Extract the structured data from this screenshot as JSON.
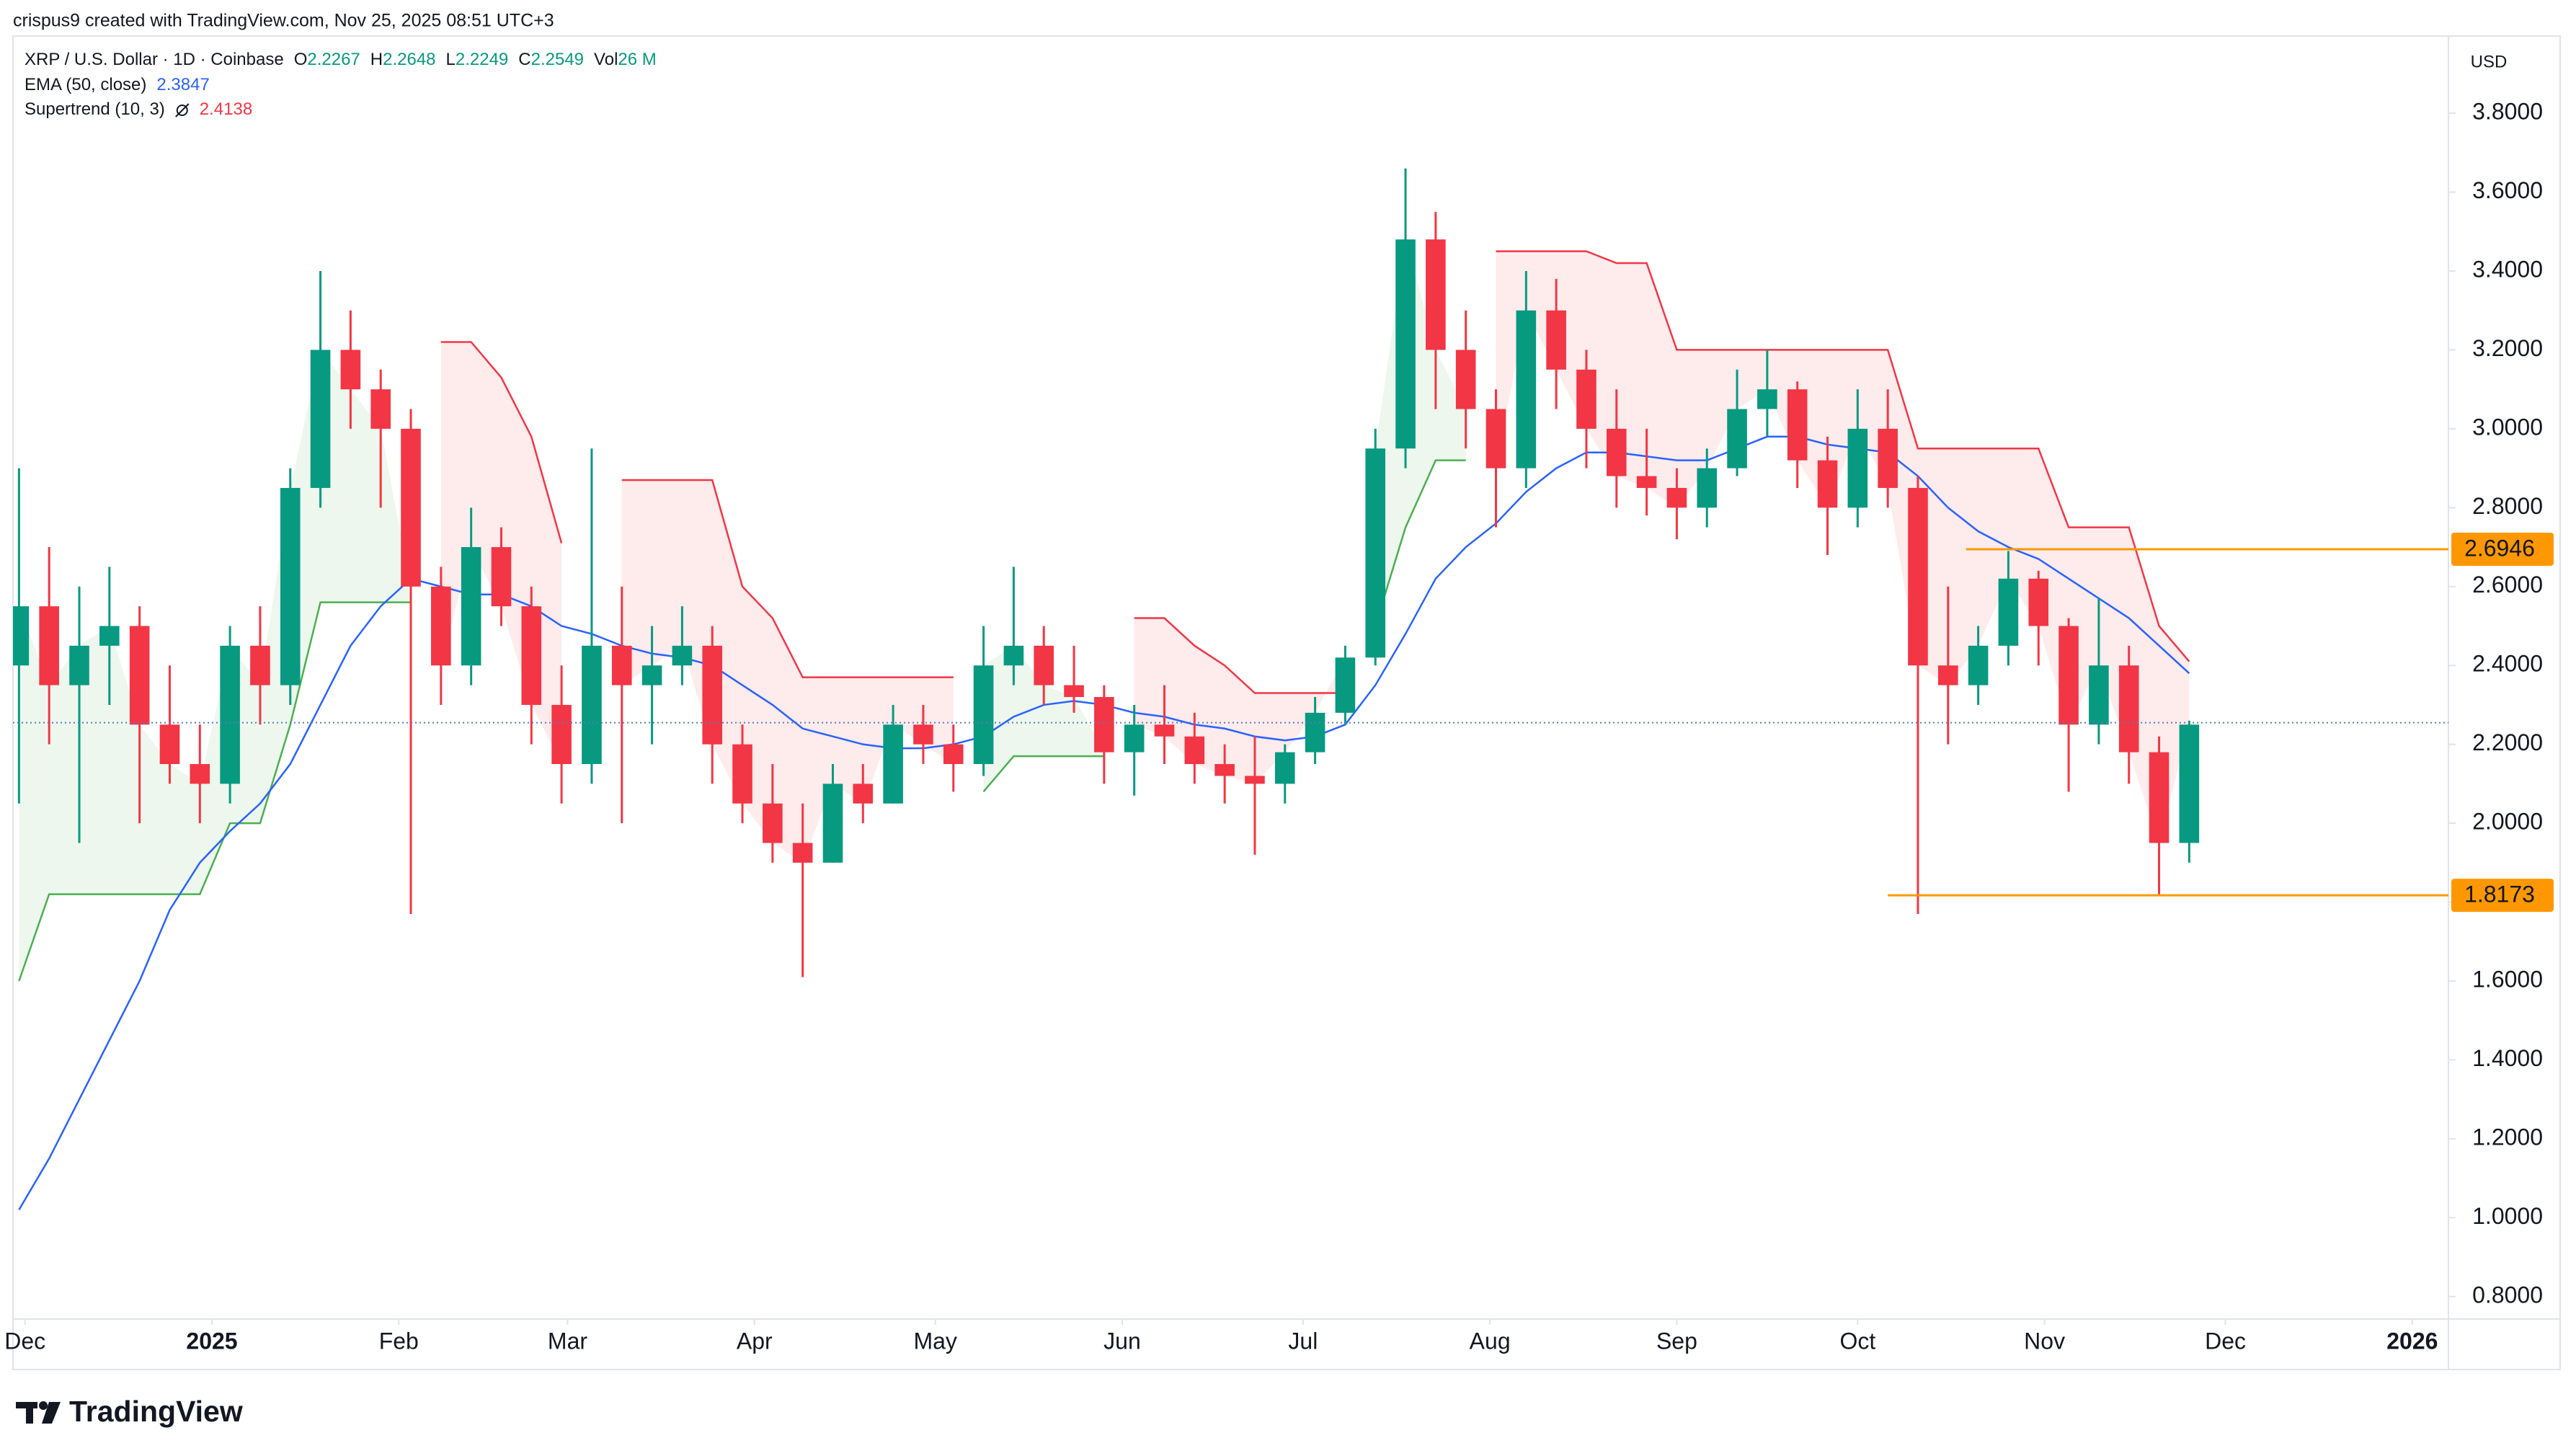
{
  "header": {
    "text": "crispus9 created with TradingView.com, Nov 25, 2025 08:51 UTC+3"
  },
  "chart_data": {
    "type": "candlestick",
    "symbol": "XRP / U.S. Dollar · 1D · Coinbase",
    "legend": [
      {
        "label": "O",
        "value": 2.2267
      },
      {
        "label": "H",
        "value": 2.2648
      },
      {
        "label": "L",
        "value": 2.2249
      },
      {
        "label": "C",
        "value": 2.2549
      },
      {
        "label": "Vol",
        "value": "26 M"
      }
    ],
    "currency": "USD",
    "colors": {
      "up": "#089981",
      "down": "#f23645"
    },
    "x": [
      "2024-11-30",
      "2024-12-05",
      "2024-12-10",
      "2024-12-15",
      "2024-12-20",
      "2024-12-25",
      "2024-12-30",
      "2025-01-04",
      "2025-01-09",
      "2025-01-14",
      "2025-01-19",
      "2025-01-24",
      "2025-01-29",
      "2025-02-03",
      "2025-02-08",
      "2025-02-13",
      "2025-02-18",
      "2025-02-23",
      "2025-02-28",
      "2025-03-05",
      "2025-03-10",
      "2025-03-15",
      "2025-03-20",
      "2025-03-25",
      "2025-03-30",
      "2025-04-04",
      "2025-04-09",
      "2025-04-14",
      "2025-04-19",
      "2025-04-24",
      "2025-04-29",
      "2025-05-04",
      "2025-05-09",
      "2025-05-14",
      "2025-05-19",
      "2025-05-24",
      "2025-05-29",
      "2025-06-03",
      "2025-06-08",
      "2025-06-13",
      "2025-06-18",
      "2025-06-23",
      "2025-06-28",
      "2025-07-03",
      "2025-07-08",
      "2025-07-13",
      "2025-07-18",
      "2025-07-23",
      "2025-07-28",
      "2025-08-02",
      "2025-08-07",
      "2025-08-12",
      "2025-08-17",
      "2025-08-22",
      "2025-08-27",
      "2025-09-01",
      "2025-09-06",
      "2025-09-11",
      "2025-09-16",
      "2025-09-21",
      "2025-09-26",
      "2025-10-01",
      "2025-10-06",
      "2025-10-11",
      "2025-10-16",
      "2025-10-21",
      "2025-10-26",
      "2025-10-31",
      "2025-11-05",
      "2025-11-10",
      "2025-11-15",
      "2025-11-20",
      "2025-11-25"
    ],
    "open": [
      2.4,
      2.55,
      2.35,
      2.45,
      2.5,
      2.25,
      2.15,
      2.1,
      2.45,
      2.35,
      2.85,
      3.2,
      3.1,
      3.0,
      2.6,
      2.4,
      2.7,
      2.55,
      2.3,
      2.15,
      2.45,
      2.35,
      2.4,
      2.45,
      2.2,
      2.05,
      1.95,
      1.9,
      2.1,
      2.05,
      2.25,
      2.2,
      2.15,
      2.4,
      2.45,
      2.35,
      2.32,
      2.18,
      2.25,
      2.22,
      2.15,
      2.12,
      2.1,
      2.18,
      2.28,
      2.42,
      2.95,
      3.48,
      3.2,
      3.05,
      2.9,
      3.3,
      3.15,
      3.0,
      2.88,
      2.85,
      2.8,
      2.9,
      3.05,
      3.1,
      2.92,
      2.8,
      3.0,
      2.85,
      2.4,
      2.35,
      2.45,
      2.62,
      2.5,
      2.25,
      2.4,
      2.18,
      1.95
    ],
    "high": [
      2.9,
      2.7,
      2.6,
      2.65,
      2.55,
      2.4,
      2.25,
      2.5,
      2.55,
      2.9,
      3.4,
      3.3,
      3.15,
      3.05,
      2.65,
      2.8,
      2.75,
      2.6,
      2.4,
      2.95,
      2.6,
      2.5,
      2.55,
      2.5,
      2.25,
      2.15,
      2.05,
      2.15,
      2.15,
      2.3,
      2.3,
      2.25,
      2.5,
      2.65,
      2.5,
      2.45,
      2.35,
      2.3,
      2.35,
      2.28,
      2.2,
      2.22,
      2.2,
      2.32,
      2.45,
      3.0,
      3.66,
      3.55,
      3.3,
      3.1,
      3.4,
      3.38,
      3.2,
      3.1,
      3.0,
      2.9,
      2.95,
      3.15,
      3.2,
      3.12,
      2.98,
      3.1,
      3.1,
      2.88,
      2.6,
      2.5,
      2.69,
      2.64,
      2.52,
      2.57,
      2.45,
      2.22,
      2.26
    ],
    "low": [
      2.05,
      2.2,
      1.95,
      2.3,
      2.0,
      2.1,
      2.0,
      2.05,
      2.25,
      2.3,
      2.8,
      3.0,
      2.8,
      1.77,
      2.3,
      2.35,
      2.5,
      2.2,
      2.05,
      2.1,
      2.0,
      2.2,
      2.35,
      2.1,
      2.0,
      1.9,
      1.61,
      1.9,
      2.0,
      2.05,
      2.15,
      2.08,
      2.12,
      2.35,
      2.3,
      2.28,
      2.1,
      2.07,
      2.15,
      2.1,
      2.05,
      1.92,
      2.05,
      2.15,
      2.25,
      2.4,
      2.9,
      3.05,
      2.95,
      2.75,
      2.85,
      3.05,
      2.9,
      2.8,
      2.78,
      2.72,
      2.75,
      2.88,
      2.98,
      2.85,
      2.68,
      2.75,
      2.8,
      1.77,
      2.2,
      2.3,
      2.4,
      2.4,
      2.08,
      2.2,
      2.1,
      1.82,
      1.9
    ],
    "close": [
      2.55,
      2.35,
      2.45,
      2.5,
      2.25,
      2.15,
      2.1,
      2.45,
      2.35,
      2.85,
      3.2,
      3.1,
      3.0,
      2.6,
      2.4,
      2.7,
      2.55,
      2.3,
      2.15,
      2.45,
      2.35,
      2.4,
      2.45,
      2.2,
      2.05,
      1.95,
      1.9,
      2.1,
      2.05,
      2.25,
      2.2,
      2.15,
      2.4,
      2.45,
      2.35,
      2.32,
      2.18,
      2.25,
      2.22,
      2.15,
      2.12,
      2.1,
      2.18,
      2.28,
      2.42,
      2.95,
      3.48,
      3.2,
      3.05,
      2.9,
      3.3,
      3.15,
      3.0,
      2.88,
      2.85,
      2.8,
      2.9,
      3.05,
      3.1,
      2.92,
      2.8,
      3.0,
      2.85,
      2.4,
      2.35,
      2.45,
      2.62,
      2.5,
      2.25,
      2.4,
      2.18,
      1.95,
      2.25
    ],
    "indicators": [
      {
        "name": "EMA (50, close)",
        "last": 2.3847,
        "color": "#2962ff",
        "values": [
          1.02,
          1.15,
          1.3,
          1.45,
          1.6,
          1.78,
          1.9,
          1.98,
          2.05,
          2.15,
          2.3,
          2.45,
          2.55,
          2.62,
          2.6,
          2.58,
          2.58,
          2.55,
          2.5,
          2.48,
          2.45,
          2.43,
          2.42,
          2.4,
          2.35,
          2.3,
          2.24,
          2.22,
          2.2,
          2.19,
          2.19,
          2.2,
          2.22,
          2.27,
          2.3,
          2.31,
          2.3,
          2.28,
          2.27,
          2.25,
          2.24,
          2.22,
          2.21,
          2.22,
          2.25,
          2.35,
          2.48,
          2.62,
          2.7,
          2.76,
          2.84,
          2.9,
          2.94,
          2.94,
          2.93,
          2.92,
          2.92,
          2.95,
          2.98,
          2.98,
          2.96,
          2.95,
          2.94,
          2.88,
          2.8,
          2.74,
          2.7,
          2.67,
          2.62,
          2.57,
          2.52,
          2.45,
          2.38
        ]
      },
      {
        "name": "Supertrend (10, 3)",
        "last": 2.4138,
        "up_color": "#4caf50",
        "down_color": "#f23645",
        "up_values": [
          1.6,
          1.82,
          1.82,
          1.82,
          1.82,
          1.82,
          1.82,
          2.0,
          2.0,
          2.25,
          2.56,
          2.56,
          2.56,
          2.56,
          null,
          null,
          null,
          null,
          null,
          2.1,
          null,
          null,
          null,
          null,
          null,
          null,
          null,
          null,
          null,
          null,
          null,
          null,
          2.08,
          2.17,
          2.17,
          2.17,
          2.17,
          null,
          null,
          null,
          null,
          null,
          null,
          null,
          null,
          2.5,
          2.75,
          2.92,
          2.92,
          null,
          null,
          null,
          null,
          null,
          null,
          null,
          null,
          null,
          null,
          null,
          null,
          null,
          null,
          null,
          null,
          null,
          null,
          null,
          null,
          null,
          null,
          null,
          null
        ],
        "down_values": [
          null,
          null,
          null,
          null,
          null,
          null,
          null,
          null,
          null,
          null,
          null,
          null,
          null,
          null,
          3.22,
          3.22,
          3.13,
          2.98,
          2.71,
          null,
          2.87,
          2.87,
          2.87,
          2.87,
          2.6,
          2.52,
          2.37,
          2.37,
          2.37,
          2.37,
          2.37,
          2.37,
          null,
          null,
          null,
          null,
          null,
          2.52,
          2.52,
          2.45,
          2.4,
          2.33,
          2.33,
          2.33,
          2.33,
          null,
          null,
          null,
          null,
          3.45,
          3.45,
          3.45,
          3.45,
          3.42,
          3.42,
          3.2,
          3.2,
          3.2,
          3.2,
          3.2,
          3.2,
          3.2,
          3.2,
          2.95,
          2.95,
          2.95,
          2.95,
          2.95,
          2.75,
          2.75,
          2.75,
          2.5,
          2.41
        ]
      }
    ],
    "levels": [
      {
        "value": 2.6946,
        "start": "2025-10-19",
        "color": "#ff9800"
      },
      {
        "value": 1.8173,
        "start": "2025-10-06",
        "color": "#ff9800"
      }
    ],
    "xlim": [
      "2024-11-29",
      "2026-01-07"
    ],
    "xticks": [
      {
        "value": "2024-12-01",
        "label": "Dec"
      },
      {
        "value": "2025-01-01",
        "label": "2025"
      },
      {
        "value": "2025-02-01",
        "label": "Feb"
      },
      {
        "value": "2025-03-01",
        "label": "Mar"
      },
      {
        "value": "2025-04-01",
        "label": "Apr"
      },
      {
        "value": "2025-05-01",
        "label": "May"
      },
      {
        "value": "2025-06-01",
        "label": "Jun"
      },
      {
        "value": "2025-07-01",
        "label": "Jul"
      },
      {
        "value": "2025-08-01",
        "label": "Aug"
      },
      {
        "value": "2025-09-01",
        "label": "Sep"
      },
      {
        "value": "2025-10-01",
        "label": "Oct"
      },
      {
        "value": "2025-11-01",
        "label": "Nov"
      },
      {
        "value": "2025-12-01",
        "label": "Dec"
      },
      {
        "value": "2026-01-01",
        "label": "2026"
      }
    ],
    "ylim": [
      0.743,
      3.992
    ],
    "yticks": [
      {
        "value": 0.8,
        "label": "0.8000"
      },
      {
        "value": 1.0,
        "label": "1.0000"
      },
      {
        "value": 1.2,
        "label": "1.2000"
      },
      {
        "value": 1.4,
        "label": "1.4000"
      },
      {
        "value": 1.6,
        "label": "1.6000"
      },
      {
        "value": 1.8,
        "label": "1.8000"
      },
      {
        "value": 2.0,
        "label": "2.0000"
      },
      {
        "value": 2.2,
        "label": "2.2000"
      },
      {
        "value": 2.4,
        "label": "2.4000"
      },
      {
        "value": 2.6,
        "label": "2.6000"
      },
      {
        "value": 2.8,
        "label": "2.8000"
      },
      {
        "value": 3.0,
        "label": "3.0000"
      },
      {
        "value": 3.2,
        "label": "3.2000"
      },
      {
        "value": 3.4,
        "label": "3.4000"
      },
      {
        "value": 3.6,
        "label": "3.6000"
      },
      {
        "value": 3.8,
        "label": "3.8000"
      }
    ],
    "grid": false
  },
  "brand": "TradingView"
}
